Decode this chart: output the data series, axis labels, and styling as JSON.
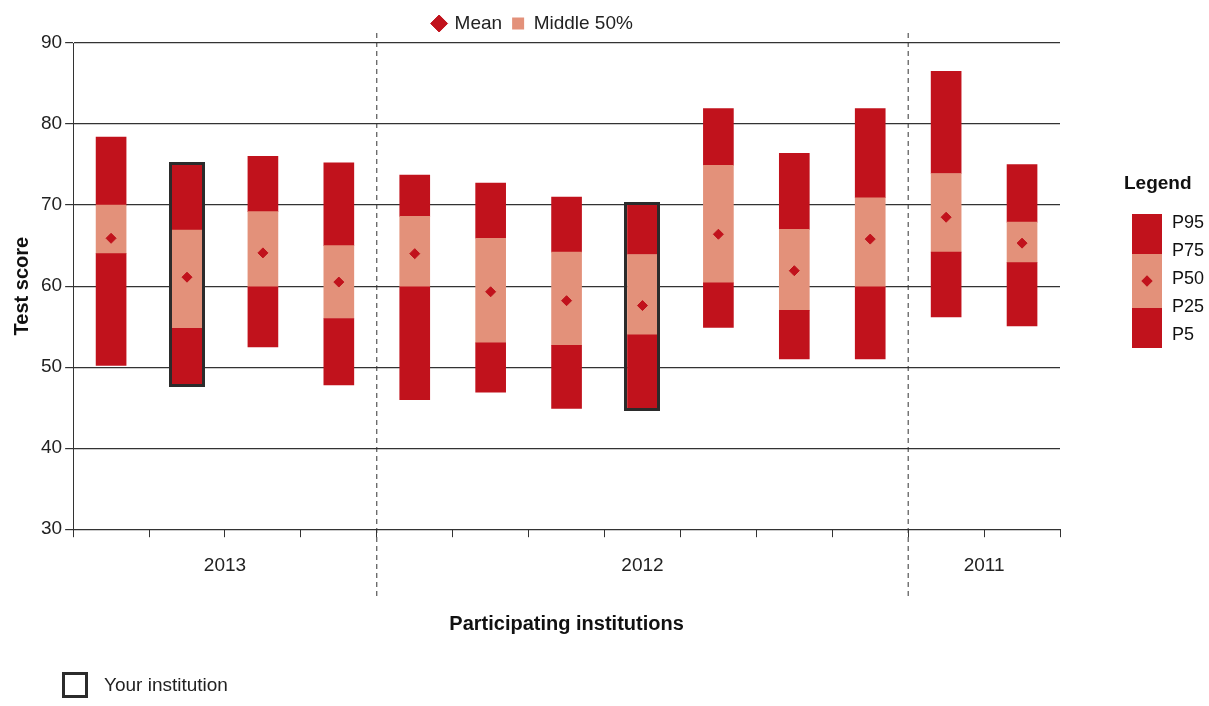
{
  "chart_data": {
    "type": "bar",
    "xlabel": "Participating institutions",
    "ylabel": "Test score",
    "legend": "top",
    "legend_title": "Legend",
    "grid": "y",
    "marker": "diamond",
    "tick_labels": "y",
    "categories": [
      null,
      null,
      null,
      null,
      null,
      null,
      null,
      null,
      null,
      null,
      null,
      null,
      null
    ],
    "ylim": [
      30,
      90
    ],
    "yticks": [
      30,
      40,
      50,
      60,
      70,
      80,
      90
    ],
    "series": [
      {
        "color": "#c1121c",
        "base": [
          50.2,
          47.9,
          52.5,
          47.8,
          46.0,
          46.9,
          44.9,
          44.9,
          54.9,
          51.0,
          51.0,
          56.2,
          55.1
        ],
        "values": [
          13.8,
          6.9,
          7.4,
          8.2,
          13.9,
          6.1,
          7.8,
          9.1,
          5.5,
          6.0,
          8.9,
          8.0,
          7.8
        ]
      },
      {
        "name": "Middle 50%",
        "color": "#e3917a",
        "base": [
          64.0,
          54.8,
          59.9,
          56.0,
          59.9,
          53.0,
          52.7,
          54.0,
          60.4,
          57.0,
          59.9,
          64.2,
          62.9
        ],
        "values": [
          6.0,
          12.1,
          9.3,
          9.0,
          8.7,
          12.9,
          11.5,
          9.9,
          14.5,
          10.0,
          11.0,
          9.7,
          5.0
        ]
      },
      {
        "color": "#c1121c",
        "base": [
          70.0,
          66.9,
          69.2,
          65.0,
          68.6,
          65.9,
          64.2,
          63.9,
          74.9,
          67.0,
          70.9,
          73.9,
          67.9
        ],
        "values": [
          8.4,
          8.1,
          6.8,
          10.2,
          5.1,
          6.8,
          6.8,
          6.1,
          7.0,
          9.4,
          11.0,
          12.6,
          7.1
        ]
      },
      {
        "type": "scatter",
        "name": "Mean",
        "color": "#c1121c",
        "values": [
          65.9,
          61.1,
          64.1,
          60.5,
          64.0,
          59.3,
          58.2,
          57.6,
          66.4,
          61.9,
          65.8,
          68.5,
          65.3
        ]
      }
    ],
    "annotations": [
      "2013",
      "2012",
      "2011",
      "P95",
      "P75",
      "P50",
      "P25",
      "P5",
      "Your institution"
    ]
  }
}
